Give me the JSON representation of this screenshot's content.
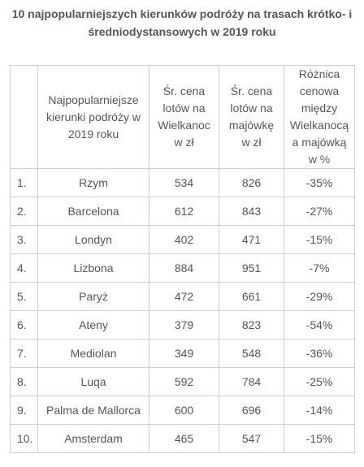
{
  "chart_data": {
    "type": "table",
    "title": "10 najpopularniejszych kierunków podróży na trasach krótko- i średniodystansowych w 2019 roku",
    "columns": [
      "",
      "Najpopularniejsze kierunki podróży w 2019 roku",
      "Śr. cena lotów na Wielkanoc w zł",
      "Śr. cena lotów na majówkę w zł",
      "Różnica cenowa między Wielkanocą a majówką w %"
    ],
    "rows": [
      [
        "1.",
        "Rzym",
        "534",
        "826",
        "-35%"
      ],
      [
        "2.",
        "Barcelona",
        "612",
        "843",
        "-27%"
      ],
      [
        "3.",
        "Londyn",
        "402",
        "471",
        "-15%"
      ],
      [
        "4.",
        "Lizbona",
        "884",
        "951",
        "-7%"
      ],
      [
        "5.",
        "Paryż",
        "472",
        "661",
        "-29%"
      ],
      [
        "6.",
        "Ateny",
        "379",
        "823",
        "-54%"
      ],
      [
        "7.",
        "Mediolan",
        "349",
        "548",
        "-36%"
      ],
      [
        "8.",
        "Luqa",
        "592",
        "784",
        "-25%"
      ],
      [
        "9.",
        "Palma de Mallorca",
        "600",
        "696",
        "-14%"
      ],
      [
        "10.",
        "Amsterdam",
        "465",
        "547",
        "-15%"
      ]
    ]
  }
}
